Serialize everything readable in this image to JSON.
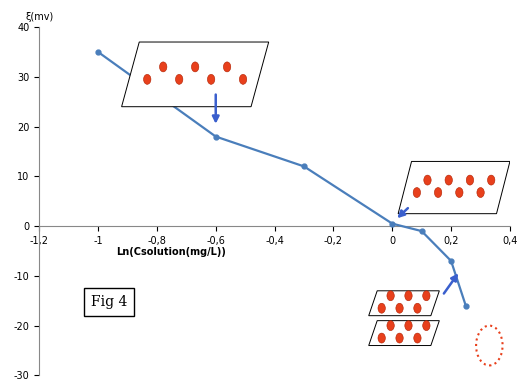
{
  "chart_data": {
    "type": "line",
    "y_label": "ξ(mv)",
    "x_label": "Ln(Csolution(mg/L))",
    "annotations": [
      "Fig 4"
    ],
    "x": [
      -1.0,
      -0.6,
      -0.3,
      0.0,
      0.1,
      0.2,
      0.25
    ],
    "series": [
      {
        "name": "ξ",
        "color": "#4a7ebb",
        "marker": "o",
        "line_style": "solid",
        "values": [
          35,
          18,
          12,
          0.5,
          -1,
          -7,
          -16
        ]
      }
    ],
    "xlim": [
      -1.2,
      0.4
    ],
    "xticks": [
      {
        "value": -1.2,
        "label": "-1,2"
      },
      -1,
      {
        "value": -0.8,
        "label": "-0,8"
      },
      {
        "value": -0.6,
        "label": "-0,6"
      },
      {
        "value": -0.4,
        "label": "-0,4"
      },
      {
        "value": -0.2,
        "label": "-0,2"
      },
      0,
      {
        "value": 0.2,
        "label": "0,2"
      },
      {
        "value": 0.4,
        "label": "0,4"
      }
    ],
    "ylim": [
      -30,
      40
    ],
    "yticks": [
      -30,
      -20,
      -10,
      0,
      10,
      20,
      30,
      40
    ],
    "grid": false
  }
}
